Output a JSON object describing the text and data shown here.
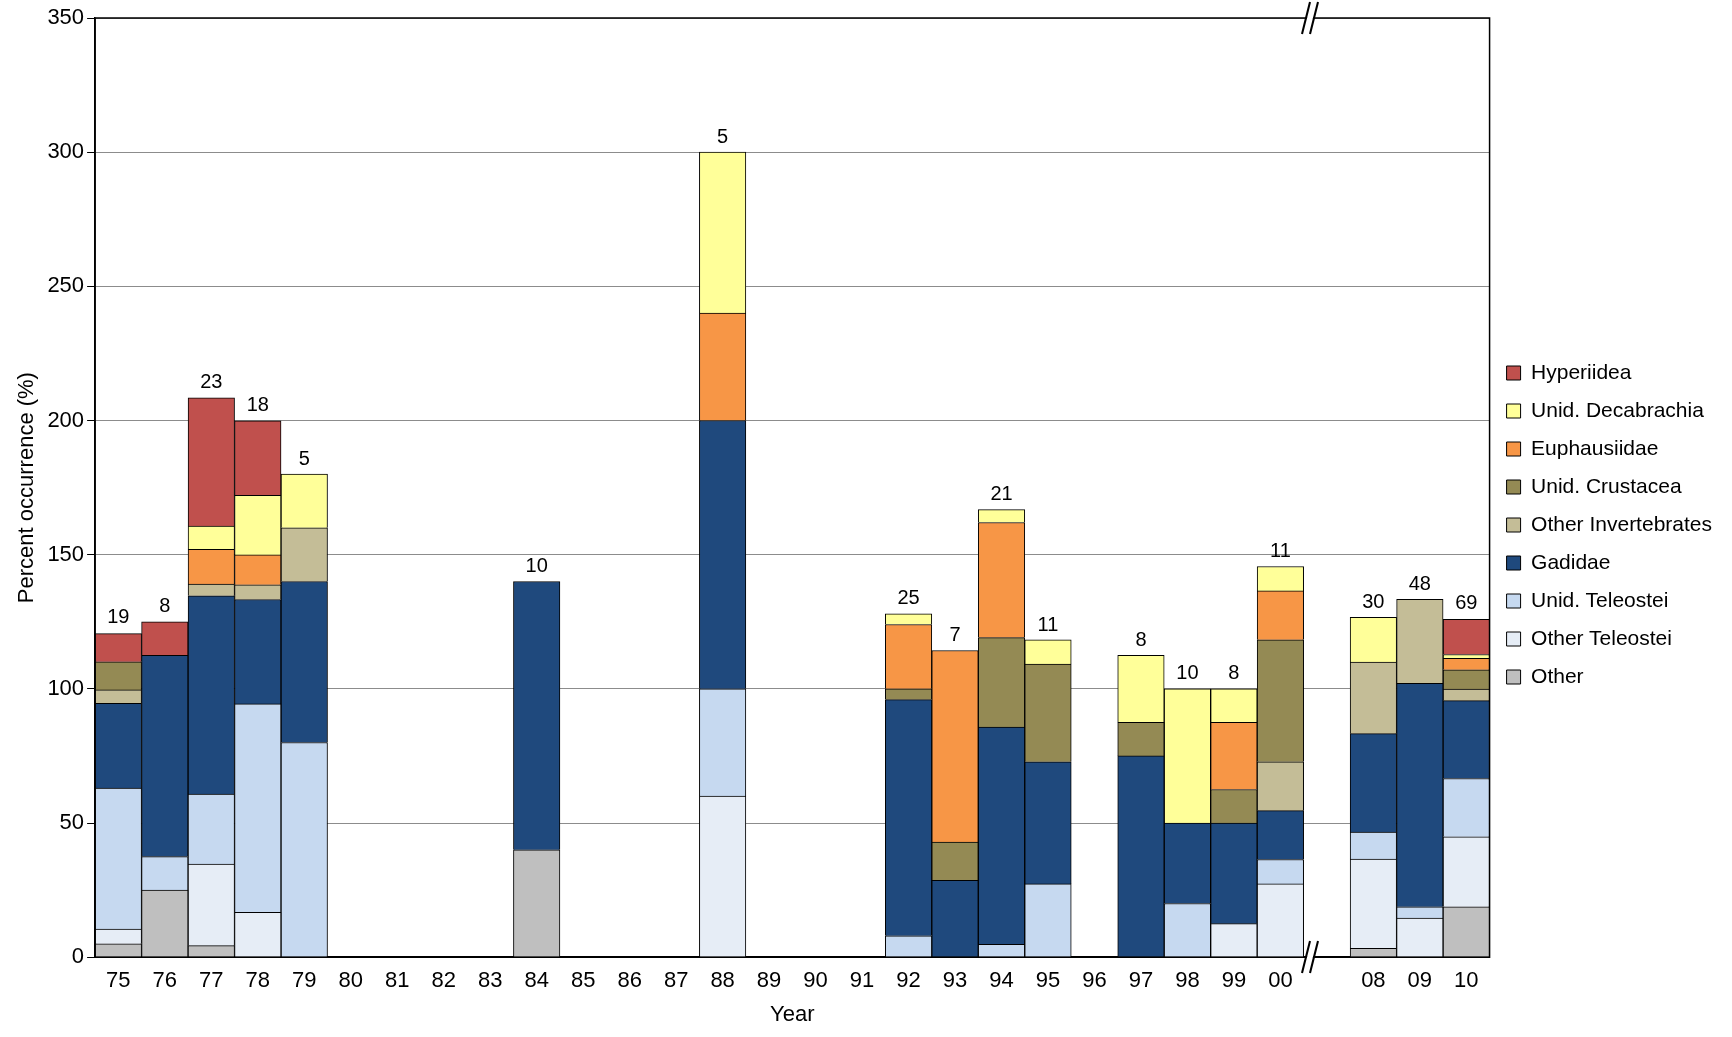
{
  "chart_data": {
    "type": "bar",
    "stacked": true,
    "xlabel": "Year",
    "ylabel": "Percent occurrence (%)",
    "categories": [
      "75",
      "76",
      "77",
      "78",
      "79",
      "80",
      "81",
      "82",
      "83",
      "84",
      "85",
      "86",
      "87",
      "88",
      "89",
      "90",
      "91",
      "92",
      "93",
      "94",
      "95",
      "96",
      "97",
      "98",
      "99",
      "00",
      null,
      "08",
      "09",
      "10"
    ],
    "ylim": [
      0,
      350
    ],
    "yticks": [
      0,
      50,
      100,
      150,
      200,
      250,
      300,
      350
    ],
    "grid": "y",
    "legend": "right",
    "series": [
      {
        "name": "Other",
        "color": "#bfbfbf",
        "values": [
          5,
          25,
          4.3,
          null,
          null,
          null,
          null,
          null,
          null,
          40,
          null,
          null,
          null,
          null,
          null,
          null,
          null,
          null,
          null,
          null,
          null,
          null,
          null,
          null,
          null,
          null,
          null,
          3.3,
          null,
          18.8
        ]
      },
      {
        "name": "Other Teleostei",
        "color": "#e6edf6",
        "values": [
          5.5,
          null,
          30.4,
          16.7,
          null,
          null,
          null,
          null,
          null,
          null,
          null,
          null,
          null,
          60,
          null,
          null,
          null,
          null,
          null,
          null,
          null,
          null,
          null,
          null,
          12.5,
          27.3,
          null,
          33.3,
          14.6,
          26.1
        ]
      },
      {
        "name": "Unid. Teleostei",
        "color": "#c6d9f0",
        "values": [
          52.5,
          12.5,
          26.1,
          77.7,
          80,
          null,
          null,
          null,
          null,
          null,
          null,
          null,
          null,
          40,
          null,
          null,
          null,
          8,
          null,
          4.8,
          27.3,
          null,
          null,
          20,
          null,
          9.1,
          null,
          10,
          4.2,
          21.7
        ]
      },
      {
        "name": "Gadidae",
        "color": "#1f497d",
        "values": [
          31.6,
          75,
          73.9,
          38.9,
          60,
          null,
          null,
          null,
          null,
          100,
          null,
          null,
          null,
          100,
          null,
          null,
          null,
          88,
          28.6,
          81,
          45.5,
          null,
          75,
          30,
          37.5,
          18.2,
          null,
          36.7,
          83.3,
          29
        ]
      },
      {
        "name": "Other Invertebrates",
        "color": "#c4bd97",
        "values": [
          5,
          null,
          4.3,
          5.5,
          20,
          null,
          null,
          null,
          null,
          null,
          null,
          null,
          null,
          null,
          null,
          null,
          null,
          null,
          null,
          null,
          null,
          null,
          null,
          null,
          null,
          18.2,
          null,
          26.7,
          31.3,
          4.3
        ]
      },
      {
        "name": "Unid. Crustacea",
        "color": "#948a54",
        "values": [
          10.5,
          null,
          null,
          null,
          null,
          null,
          null,
          null,
          null,
          null,
          null,
          null,
          null,
          null,
          null,
          null,
          null,
          4,
          14.3,
          33.3,
          36.4,
          null,
          12.5,
          null,
          12.5,
          45.5,
          null,
          null,
          null,
          7.2
        ]
      },
      {
        "name": "Euphausiidae",
        "color": "#f79646",
        "values": [
          null,
          null,
          13,
          11.1,
          null,
          null,
          null,
          null,
          null,
          null,
          null,
          null,
          null,
          40,
          null,
          null,
          null,
          24,
          71.4,
          42.9,
          null,
          null,
          null,
          null,
          25,
          18.2,
          null,
          null,
          null,
          4.3
        ]
      },
      {
        "name": "Unid. Decabrachia",
        "color": "#ffff99",
        "values": [
          null,
          null,
          8.7,
          22.2,
          20,
          null,
          null,
          null,
          null,
          null,
          null,
          null,
          null,
          60,
          null,
          null,
          null,
          4,
          null,
          4.8,
          9.1,
          null,
          25,
          50,
          12.5,
          9.1,
          null,
          16.7,
          null,
          1.4
        ]
      },
      {
        "name": "Hyperiidea",
        "color": "#c0504d",
        "values": [
          10.5,
          12.5,
          47.8,
          27.8,
          null,
          null,
          null,
          null,
          null,
          null,
          null,
          null,
          null,
          null,
          null,
          null,
          null,
          null,
          null,
          null,
          null,
          null,
          null,
          null,
          null,
          null,
          null,
          null,
          null,
          13.1
        ]
      }
    ],
    "annotations": [
      {
        "text": "19",
        "x": "75",
        "y": 121
      },
      {
        "text": "8",
        "x": "76",
        "y": 125
      },
      {
        "text": "23",
        "x": "77",
        "y": 208.5
      },
      {
        "text": "18",
        "x": "78",
        "y": 200
      },
      {
        "text": "5",
        "x": "79",
        "y": 180
      },
      {
        "text": "10",
        "x": "84",
        "y": 140
      },
      {
        "text": "5",
        "x": "88",
        "y": 300
      },
      {
        "text": "25",
        "x": "92",
        "y": 128
      },
      {
        "text": "7",
        "x": "93",
        "y": 114.3
      },
      {
        "text": "21",
        "x": "94",
        "y": 166.7
      },
      {
        "text": "11",
        "x": "95",
        "y": 118.2
      },
      {
        "text": "8",
        "x": "97",
        "y": 112.5
      },
      {
        "text": "10",
        "x": "98",
        "y": 100
      },
      {
        "text": "8",
        "x": "99",
        "y": 100
      },
      {
        "text": "11",
        "x": "00",
        "y": 145.5
      },
      {
        "text": "30",
        "x": "08",
        "y": 126.7
      },
      {
        "text": "48",
        "x": "09",
        "y": 133.3
      },
      {
        "text": "69",
        "x": "10",
        "y": 126.1
      }
    ]
  }
}
